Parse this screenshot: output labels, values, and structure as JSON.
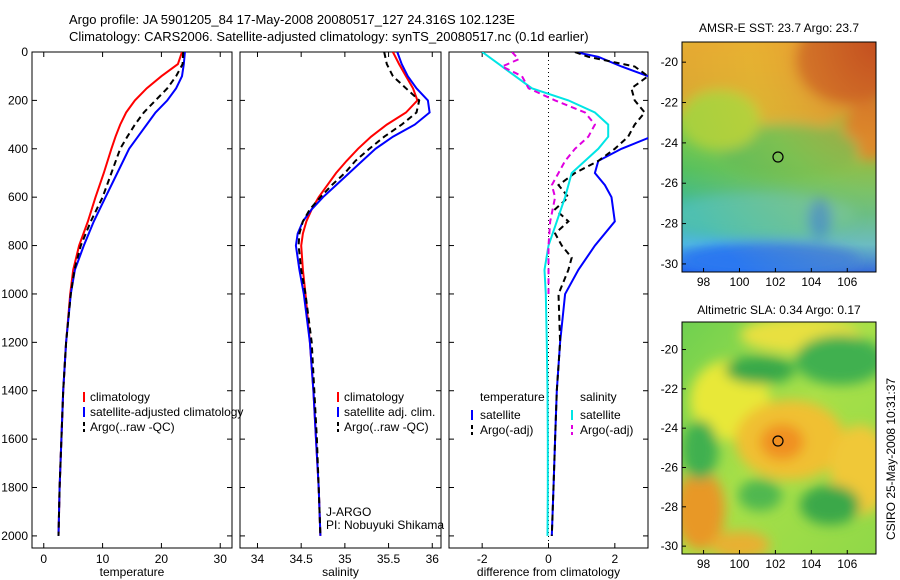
{
  "header": {
    "title_line1": "Argo profile: JA 5901205_84 17-May-2008 20080517_127 24.316S 102.123E",
    "title_line2": "Climatology: CARS2006. Satellite-adjusted climatology: synTS_20080517.nc (0.1d earlier)"
  },
  "side_note": "CSIRO 25-May-2008 10:31:37",
  "colors": {
    "climatology": "#ff0000",
    "satellite": "#0000ff",
    "argo": "#000000",
    "salinity_satellite": "#00e5e5",
    "salinity_argo": "#e000e0"
  },
  "chart_data": [
    {
      "type": "line",
      "id": "temperature",
      "xlabel": "temperature",
      "ylabel": "",
      "xlim": [
        -2,
        32
      ],
      "ylim": [
        2050,
        0
      ],
      "xticks": [
        0,
        10,
        20,
        30
      ],
      "yticks": [
        0,
        200,
        400,
        600,
        800,
        1000,
        1200,
        1400,
        1600,
        1800,
        2000
      ],
      "legend": [
        "climatology",
        "satellite-adjusted climatology",
        "Argo(..raw -QC)"
      ],
      "series": [
        {
          "name": "climatology",
          "style": "solid",
          "color": "#ff0000",
          "y": [
            0,
            50,
            100,
            150,
            200,
            250,
            300,
            350,
            400,
            500,
            600,
            700,
            800,
            900,
            1000,
            1200,
            1400,
            1600,
            1800,
            2000
          ],
          "x": [
            23.5,
            22.8,
            20,
            17.5,
            15.5,
            14,
            13,
            12.2,
            11.5,
            10.2,
            8.8,
            7.5,
            6,
            5,
            4.5,
            3.8,
            3.3,
            3,
            2.7,
            2.5
          ]
        },
        {
          "name": "satellite-adjusted climatology",
          "style": "solid",
          "color": "#0000ff",
          "y": [
            0,
            50,
            100,
            150,
            200,
            250,
            300,
            350,
            400,
            500,
            600,
            700,
            800,
            900,
            1000,
            1200,
            1400,
            1600,
            1800,
            2000
          ],
          "x": [
            24,
            23.8,
            23.5,
            22.5,
            21,
            19,
            17.5,
            16,
            14.5,
            12.5,
            10.5,
            8.5,
            6.8,
            5.3,
            4.6,
            3.8,
            3.3,
            3,
            2.7,
            2.5
          ]
        },
        {
          "name": "Argo(..raw -QC)",
          "style": "dashed",
          "color": "#000000",
          "y": [
            0,
            50,
            100,
            150,
            200,
            250,
            300,
            350,
            400,
            500,
            600,
            700,
            800,
            900,
            1000,
            1200,
            1400,
            1600,
            1800,
            2000
          ],
          "x": [
            23.7,
            23.6,
            22.5,
            21,
            19,
            17,
            15.5,
            14.2,
            13,
            11.5,
            10,
            8,
            6.3,
            5.2,
            4.6,
            3.8,
            3.3,
            3,
            2.7,
            2.5
          ]
        }
      ]
    },
    {
      "type": "line",
      "id": "salinity",
      "xlabel": "salinity",
      "ylabel": "",
      "xlim": [
        33.8,
        36.1
      ],
      "ylim": [
        2050,
        0
      ],
      "xticks": [
        34,
        34.5,
        35,
        35.5,
        36
      ],
      "legend": [
        "climatology",
        "satellite adj. clim.",
        "Argo(..raw -QC)"
      ],
      "annotation": [
        "J-ARGO",
        "PI: Nobuyuki Shikama"
      ],
      "series": [
        {
          "name": "climatology",
          "style": "solid",
          "color": "#ff0000",
          "y": [
            0,
            50,
            100,
            150,
            200,
            250,
            300,
            350,
            400,
            450,
            500,
            550,
            600,
            650,
            700,
            750,
            800,
            900,
            1000,
            1200,
            1400,
            1600,
            1800,
            2000
          ],
          "x": [
            35.55,
            35.62,
            35.7,
            35.78,
            35.83,
            35.7,
            35.48,
            35.3,
            35.15,
            35.02,
            34.9,
            34.8,
            34.7,
            34.62,
            34.56,
            34.52,
            34.5,
            34.52,
            34.55,
            34.6,
            34.64,
            34.67,
            34.7,
            34.72
          ]
        },
        {
          "name": "satellite adj. clim.",
          "style": "solid",
          "color": "#0000ff",
          "y": [
            0,
            50,
            100,
            150,
            200,
            250,
            300,
            350,
            400,
            450,
            500,
            550,
            600,
            650,
            700,
            750,
            800,
            900,
            1000,
            1200,
            1400,
            1600,
            1800,
            2000
          ],
          "x": [
            35.6,
            35.65,
            35.72,
            35.82,
            35.95,
            35.97,
            35.8,
            35.55,
            35.35,
            35.2,
            35.05,
            34.9,
            34.75,
            34.62,
            34.52,
            34.46,
            34.44,
            34.48,
            34.53,
            34.6,
            34.64,
            34.67,
            34.7,
            34.72
          ]
        },
        {
          "name": "Argo(..raw -QC)",
          "style": "dashed",
          "color": "#000000",
          "y": [
            0,
            50,
            100,
            150,
            200,
            250,
            300,
            350,
            400,
            450,
            500,
            550,
            600,
            650,
            700,
            750,
            800,
            900,
            1000,
            1200,
            1400,
            1600,
            1800,
            2000
          ],
          "x": [
            35.45,
            35.48,
            35.55,
            35.7,
            35.85,
            35.82,
            35.65,
            35.45,
            35.28,
            35.12,
            35,
            34.85,
            34.72,
            34.6,
            34.52,
            34.48,
            34.47,
            34.5,
            34.55,
            34.62,
            34.65,
            34.68,
            34.7,
            34.72
          ]
        }
      ]
    },
    {
      "type": "line",
      "id": "difference",
      "xlabel": "difference from climatology",
      "ylabel": "",
      "xlim": [
        -3,
        3
      ],
      "ylim": [
        2050,
        0
      ],
      "xticks": [
        -2,
        0,
        2
      ],
      "legend_groups": [
        {
          "title": "temperature",
          "entries": [
            "satellite",
            "Argo(-adj)"
          ]
        },
        {
          "title": "salinity",
          "entries": [
            "satellite",
            "Argo(-adj)"
          ]
        }
      ],
      "series": [
        {
          "name": "satellite",
          "group": "temperature",
          "style": "solid",
          "color": "#0000ff",
          "y": [
            0,
            20,
            60,
            100,
            150,
            200,
            250,
            300,
            350,
            400,
            450,
            500,
            550,
            600,
            700,
            800,
            900,
            1000,
            1200,
            1400,
            1600,
            1800,
            2000
          ],
          "x": [
            0.8,
            1.5,
            2.2,
            3,
            3.5,
            3.8,
            4,
            3.6,
            3.1,
            2.2,
            1.5,
            1.4,
            1.7,
            1.9,
            2,
            1.4,
            0.9,
            0.5,
            0.35,
            0.25,
            0.2,
            0.15,
            0.1
          ]
        },
        {
          "name": "Argo(-adj)",
          "group": "temperature",
          "style": "dashed",
          "color": "#000000",
          "y": [
            0,
            20,
            60,
            100,
            150,
            200,
            250,
            300,
            350,
            400,
            450,
            500,
            550,
            600,
            650,
            700,
            750,
            800,
            850,
            900,
            1000,
            1200,
            1400,
            1600,
            1800,
            2000
          ],
          "x": [
            0.8,
            1.2,
            2.6,
            3,
            2.5,
            2.6,
            2.9,
            2.6,
            2.4,
            2,
            1.5,
            0.8,
            0.3,
            0.6,
            0.2,
            0.6,
            0.2,
            0.4,
            0.7,
            0.6,
            0.3,
            0.35,
            0.25,
            0.2,
            0.15,
            0.1
          ]
        },
        {
          "name": "satellite",
          "group": "salinity",
          "style": "solid",
          "color": "#00e5e5",
          "y": [
            0,
            50,
            100,
            150,
            200,
            250,
            300,
            350,
            400,
            450,
            500,
            550,
            600,
            700,
            800,
            900,
            1000,
            1200,
            1400,
            1600,
            1800,
            2000
          ],
          "x": [
            -2,
            -1.5,
            -1,
            -0.5,
            0.6,
            1.4,
            1.8,
            1.8,
            1.5,
            1.1,
            0.7,
            0.6,
            0.5,
            0.25,
            0,
            -0.12,
            -0.08,
            -0.05,
            -0.03,
            -0.02,
            -0.02,
            -0.03
          ]
        },
        {
          "name": "Argo(-adj)",
          "group": "salinity",
          "style": "dashed",
          "color": "#e000e0",
          "y": [
            0,
            30,
            60,
            100,
            150,
            200,
            250,
            300,
            350,
            400,
            450,
            500,
            550,
            600,
            700,
            800,
            900,
            1000
          ],
          "x": [
            -1.1,
            -0.9,
            -1.4,
            -0.8,
            -0.6,
            0.2,
            1.1,
            1.4,
            1.2,
            0.8,
            0.5,
            0.3,
            0.1,
            0.2,
            0.05,
            0,
            0,
            0
          ]
        }
      ]
    },
    {
      "type": "heatmap",
      "id": "amsr_sst",
      "title": "AMSR-E SST: 23.7 Argo: 23.7",
      "xticks": [
        98,
        100,
        102,
        104,
        106
      ],
      "yticks": [
        -20,
        -22,
        -24,
        -26,
        -28,
        -30
      ],
      "xlim": [
        96.8,
        107.6
      ],
      "ylim": [
        -30.4,
        -19
      ],
      "marker": {
        "lon": 102.123,
        "lat": -24.316
      }
    },
    {
      "type": "heatmap",
      "id": "altimetric_sla",
      "title": "Altimetric SLA: 0.34 Argo: 0.17",
      "xticks": [
        98,
        100,
        102,
        104,
        106
      ],
      "yticks": [
        -20,
        -22,
        -24,
        -26,
        -28,
        -30
      ],
      "xlim": [
        96.8,
        107.6
      ],
      "ylim": [
        -30.4,
        -18.6
      ],
      "marker": {
        "lon": 102.123,
        "lat": -24.316
      }
    }
  ]
}
